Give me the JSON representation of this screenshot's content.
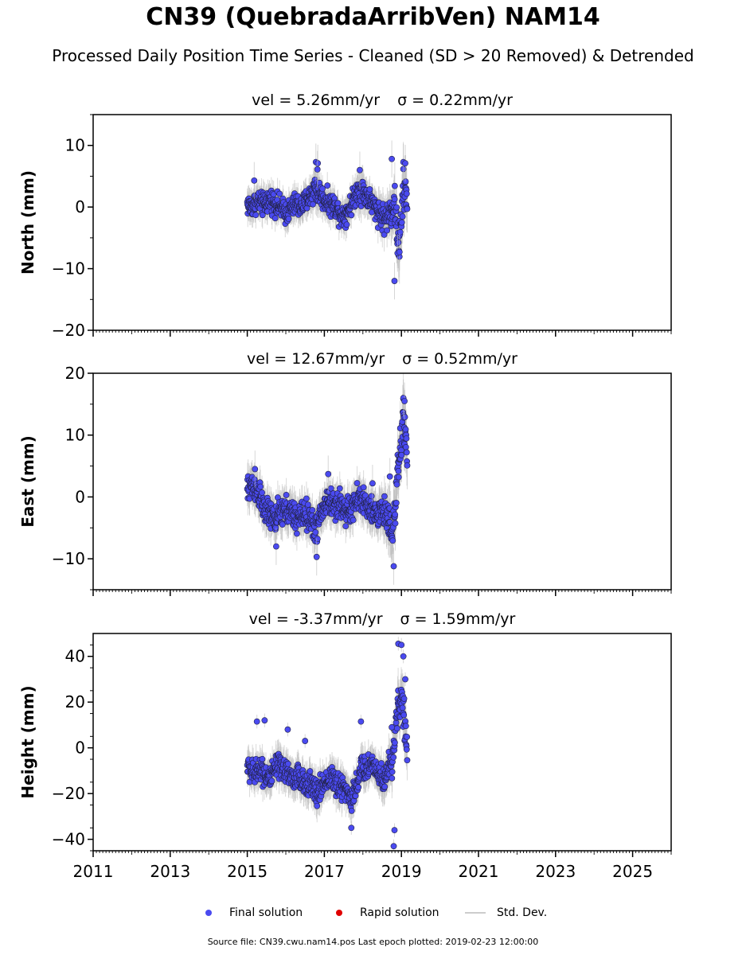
{
  "title": "CN39 (QuebradaArribVen) NAM14",
  "subtitle": "Processed Daily Position Time Series - Cleaned (SD > 20 Removed) & Detrended",
  "legend": {
    "final_label": "Final solution",
    "rapid_label": "Rapid solution",
    "std_label": "Std. Dev.",
    "final_color": "#4a4af0",
    "rapid_color": "#e00000",
    "std_color": "#cccccc"
  },
  "footer": "Source file: CN39.cwu.nam14.pos  Last epoch plotted: 2019-02-23 12:00:00",
  "chart_data": [
    {
      "type": "scatter",
      "component": "north",
      "ylabel": "North (mm)",
      "vel_text": "vel = 5.26mm/yr",
      "sigma_text": "σ = 0.22mm/yr",
      "xlim": [
        2011,
        2026
      ],
      "ylim": [
        -20,
        15
      ],
      "yticks": [
        -20,
        -10,
        0,
        10
      ],
      "xticks": [
        2011,
        2013,
        2015,
        2017,
        2019,
        2021,
        2023,
        2025
      ],
      "x": [
        2015.0,
        2015.1,
        2015.25,
        2015.4,
        2015.5,
        2015.6,
        2015.75,
        2015.9,
        2016.0,
        2016.1,
        2016.25,
        2016.4,
        2016.5,
        2016.6,
        2016.75,
        2016.85,
        2016.95,
        2017.05,
        2017.15,
        2017.3,
        2017.4,
        2017.5,
        2017.6,
        2017.7,
        2017.8,
        2017.9,
        2018.0,
        2018.1,
        2018.2,
        2018.3,
        2018.45,
        2018.55,
        2018.65,
        2018.75,
        2018.82,
        2018.88,
        2018.95,
        2019.0,
        2019.05,
        2019.1,
        2019.15
      ],
      "y": [
        0.5,
        0.0,
        1.0,
        0.3,
        0.8,
        1.2,
        0.5,
        -0.3,
        -1.0,
        -0.5,
        0.5,
        0.0,
        0.8,
        1.5,
        3.0,
        2.5,
        1.5,
        1.0,
        0.5,
        0.0,
        -1.0,
        -1.5,
        -0.5,
        0.5,
        2.0,
        3.0,
        2.5,
        1.8,
        1.0,
        0.0,
        -1.0,
        -2.0,
        -1.5,
        -0.5,
        1.0,
        -3.5,
        -6.0,
        -2.0,
        2.0,
        3.0,
        0.0
      ],
      "sd": [
        2.0,
        2.0,
        2.0,
        2.0,
        2.0,
        2.0,
        2.0,
        2.0,
        2.0,
        2.0,
        2.0,
        2.0,
        2.0,
        2.0,
        2.5,
        2.5,
        2.0,
        2.0,
        2.0,
        2.0,
        2.0,
        2.0,
        2.0,
        2.0,
        2.0,
        2.5,
        2.5,
        2.0,
        2.0,
        2.0,
        2.5,
        2.5,
        2.5,
        3.0,
        3.5,
        3.5,
        4.0,
        4.0,
        4.0,
        4.0,
        3.5
      ],
      "outliers": [
        [
          2015.18,
          4.3
        ],
        [
          2016.78,
          7.3
        ],
        [
          2016.83,
          7.1
        ],
        [
          2016.82,
          6.1
        ],
        [
          2017.92,
          6.0
        ],
        [
          2018.75,
          7.8
        ],
        [
          2018.82,
          -12.0
        ],
        [
          2018.9,
          -7.5
        ],
        [
          2018.95,
          -7.3
        ],
        [
          2019.05,
          7.3
        ],
        [
          2019.1,
          7.1
        ]
      ]
    },
    {
      "type": "scatter",
      "component": "east",
      "ylabel": "East (mm)",
      "vel_text": "vel = 12.67mm/yr",
      "sigma_text": "σ = 0.52mm/yr",
      "xlim": [
        2011,
        2026
      ],
      "ylim": [
        -15,
        20
      ],
      "yticks": [
        -10,
        0,
        10,
        20
      ],
      "xticks": [
        2011,
        2013,
        2015,
        2017,
        2019,
        2021,
        2023,
        2025
      ],
      "x": [
        2015.0,
        2015.1,
        2015.2,
        2015.3,
        2015.4,
        2015.5,
        2015.6,
        2015.7,
        2015.8,
        2015.9,
        2016.0,
        2016.1,
        2016.2,
        2016.3,
        2016.4,
        2016.5,
        2016.6,
        2016.7,
        2016.8,
        2016.9,
        2017.0,
        2017.1,
        2017.2,
        2017.3,
        2017.4,
        2017.5,
        2017.6,
        2017.7,
        2017.8,
        2017.9,
        2018.0,
        2018.1,
        2018.2,
        2018.3,
        2018.4,
        2018.5,
        2018.6,
        2018.7,
        2018.75,
        2018.8,
        2018.85,
        2018.9,
        2018.95,
        2019.0,
        2019.05,
        2019.1,
        2019.15
      ],
      "y": [
        1.0,
        2.0,
        1.5,
        0.5,
        -1.5,
        -2.5,
        -3.0,
        -3.5,
        -3.0,
        -2.5,
        -2.0,
        -2.5,
        -3.0,
        -3.5,
        -3.0,
        -2.5,
        -3.5,
        -4.5,
        -5.0,
        -3.0,
        -1.5,
        -0.5,
        -1.0,
        -1.5,
        -1.0,
        -2.0,
        -2.5,
        -2.0,
        -1.0,
        0.0,
        -0.5,
        -1.5,
        -2.5,
        -3.0,
        -2.5,
        -2.0,
        -3.0,
        -4.0,
        -5.0,
        -4.0,
        -1.0,
        3.0,
        6.0,
        9.0,
        12.0,
        11.0,
        8.0
      ],
      "sd": [
        2.5,
        2.5,
        2.5,
        2.5,
        2.5,
        2.5,
        2.5,
        2.5,
        2.5,
        2.5,
        2.5,
        2.5,
        2.5,
        2.5,
        2.5,
        2.5,
        2.5,
        2.5,
        2.5,
        2.5,
        2.5,
        2.5,
        2.5,
        2.5,
        2.5,
        2.5,
        2.5,
        2.5,
        2.5,
        2.5,
        2.5,
        2.5,
        2.5,
        2.5,
        2.5,
        3.0,
        3.0,
        3.5,
        3.5,
        4.0,
        4.0,
        4.0,
        4.0,
        4.0,
        4.0,
        4.0,
        3.5
      ],
      "outliers": [
        [
          2015.2,
          4.5
        ],
        [
          2015.75,
          -8.0
        ],
        [
          2016.8,
          -9.7
        ],
        [
          2017.1,
          3.7
        ],
        [
          2018.25,
          2.2
        ],
        [
          2018.7,
          3.3
        ],
        [
          2018.8,
          -11.2
        ],
        [
          2019.05,
          16.0
        ],
        [
          2019.08,
          15.5
        ]
      ]
    },
    {
      "type": "scatter",
      "component": "height",
      "ylabel": "Height (mm)",
      "vel_text": "vel = -3.37mm/yr",
      "sigma_text": "σ = 1.59mm/yr",
      "xlim": [
        2011,
        2026
      ],
      "ylim": [
        -45,
        50
      ],
      "yticks": [
        -40,
        -20,
        0,
        20,
        40
      ],
      "xticks": [
        2011,
        2013,
        2015,
        2017,
        2019,
        2021,
        2023,
        2025
      ],
      "xticklabels": [
        "2011",
        "2013",
        "2015",
        "2017",
        "2019",
        "2021",
        "2023",
        "2025"
      ],
      "x": [
        2015.0,
        2015.1,
        2015.2,
        2015.3,
        2015.4,
        2015.5,
        2015.6,
        2015.7,
        2015.8,
        2015.9,
        2016.0,
        2016.1,
        2016.2,
        2016.3,
        2016.4,
        2016.5,
        2016.6,
        2016.7,
        2016.8,
        2016.9,
        2017.0,
        2017.1,
        2017.2,
        2017.3,
        2017.4,
        2017.5,
        2017.6,
        2017.7,
        2017.8,
        2017.9,
        2018.0,
        2018.1,
        2018.2,
        2018.3,
        2018.4,
        2018.5,
        2018.6,
        2018.7,
        2018.75,
        2018.8,
        2018.85,
        2018.9,
        2018.95,
        2019.0,
        2019.05,
        2019.1,
        2019.15
      ],
      "y": [
        -8.0,
        -10.0,
        -12.0,
        -8.0,
        -10.0,
        -12.0,
        -14.0,
        -10.0,
        -8.0,
        -10.0,
        -9.0,
        -12.0,
        -14.0,
        -12.0,
        -15.0,
        -16.0,
        -14.0,
        -18.0,
        -20.0,
        -18.0,
        -15.0,
        -14.0,
        -12.0,
        -16.0,
        -18.0,
        -16.0,
        -20.0,
        -22.0,
        -18.0,
        -12.0,
        -8.0,
        -10.0,
        -6.0,
        -8.0,
        -10.0,
        -14.0,
        -12.0,
        -8.0,
        -4.0,
        0.0,
        10.0,
        18.0,
        20.0,
        22.0,
        15.0,
        8.0,
        0.0
      ],
      "sd": [
        6.0,
        6.0,
        6.0,
        6.0,
        6.0,
        6.0,
        6.0,
        6.0,
        6.0,
        6.0,
        6.0,
        6.0,
        6.0,
        6.0,
        6.0,
        6.0,
        6.0,
        6.0,
        6.5,
        6.5,
        6.0,
        6.0,
        6.0,
        6.5,
        6.5,
        6.5,
        6.5,
        6.5,
        6.5,
        6.0,
        6.0,
        6.0,
        6.0,
        6.0,
        6.0,
        7.0,
        7.0,
        7.5,
        8.0,
        8.0,
        8.5,
        9.0,
        9.0,
        9.0,
        9.0,
        8.5,
        8.0
      ],
      "outliers": [
        [
          2015.25,
          11.5
        ],
        [
          2015.45,
          12.0
        ],
        [
          2016.05,
          8.0
        ],
        [
          2016.5,
          3.0
        ],
        [
          2017.7,
          -35.0
        ],
        [
          2017.95,
          11.5
        ],
        [
          2018.75,
          9.0
        ],
        [
          2018.8,
          -43.0
        ],
        [
          2018.82,
          -36.0
        ],
        [
          2018.92,
          45.5
        ],
        [
          2019.0,
          45.0
        ],
        [
          2019.05,
          40.0
        ],
        [
          2019.1,
          30.0
        ]
      ]
    }
  ]
}
